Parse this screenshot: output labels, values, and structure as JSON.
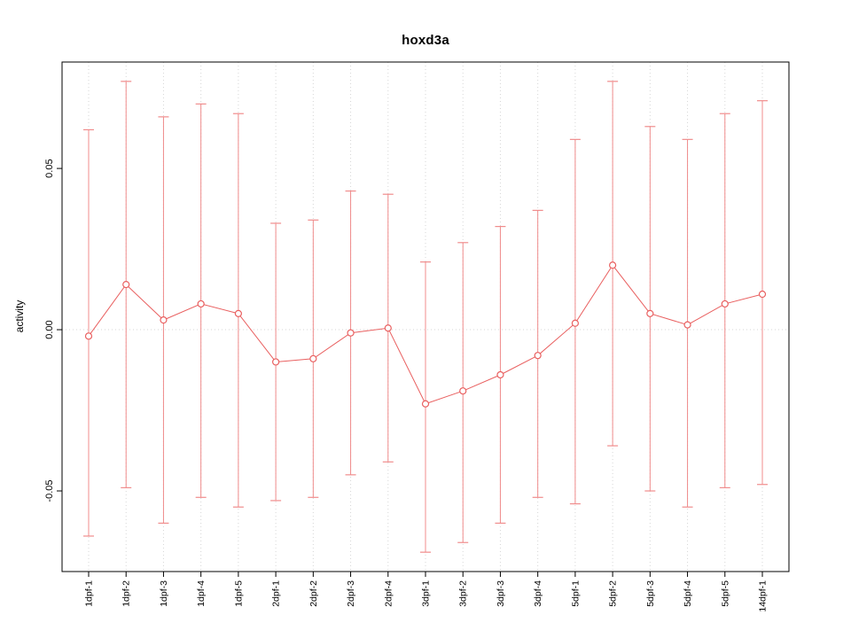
{
  "chart_data": {
    "type": "line",
    "title": "hoxd3a",
    "ylabel": "activity",
    "xlabel": "",
    "ylim": [
      -0.075,
      0.083
    ],
    "yticks": [
      -0.05,
      0.0,
      0.05
    ],
    "ytick_labels": [
      "-0.05",
      "0.00",
      "0.05"
    ],
    "grid": "dotted vertical at each category, dotted horizontal at 0",
    "legend": "none",
    "categories": [
      "1dpf-1",
      "1dpf-2",
      "1dpf-3",
      "1dpf-4",
      "1dpf-5",
      "2dpf-1",
      "2dpf-2",
      "2dpf-3",
      "2dpf-4",
      "3dpf-1",
      "3dpf-2",
      "3dpf-3",
      "3dpf-4",
      "5dpf-1",
      "5dpf-2",
      "5dpf-3",
      "5dpf-4",
      "5dpf-5",
      "14dpf-1"
    ],
    "values": [
      -0.002,
      0.014,
      0.003,
      0.008,
      0.005,
      -0.01,
      -0.009,
      -0.001,
      0.0005,
      -0.023,
      -0.019,
      -0.014,
      -0.008,
      0.002,
      0.02,
      0.005,
      0.0015,
      0.008,
      0.011
    ],
    "error_upper": [
      0.062,
      0.077,
      0.066,
      0.07,
      0.067,
      0.033,
      0.034,
      0.043,
      0.042,
      0.021,
      0.027,
      0.032,
      0.037,
      0.059,
      0.077,
      0.063,
      0.059,
      0.067,
      0.071
    ],
    "error_lower": [
      -0.064,
      -0.049,
      -0.06,
      -0.052,
      -0.055,
      -0.053,
      -0.052,
      -0.045,
      -0.041,
      -0.069,
      -0.066,
      -0.06,
      -0.052,
      -0.054,
      -0.036,
      -0.05,
      -0.055,
      -0.049,
      -0.048
    ],
    "series_color": "#e96060",
    "errorbar_color": "#f08c8c",
    "grid_color": "#d6d6d6",
    "axis_color": "#000000",
    "zero_line": 0
  }
}
